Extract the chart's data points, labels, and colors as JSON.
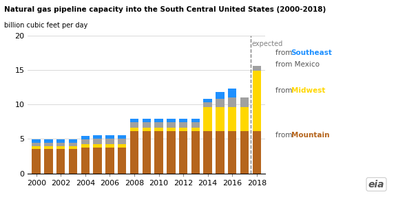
{
  "title": "Natural gas pipeline capacity into the South Central United States (2000-2018)",
  "subtitle": "billion cubic feet per day",
  "years": [
    2000,
    2001,
    2002,
    2003,
    2004,
    2005,
    2006,
    2007,
    2008,
    2009,
    2010,
    2011,
    2012,
    2013,
    2014,
    2015,
    2016,
    2017,
    2018
  ],
  "mountain": [
    3.5,
    3.5,
    3.5,
    3.5,
    3.7,
    3.7,
    3.7,
    3.7,
    6.1,
    6.1,
    6.1,
    6.1,
    6.1,
    6.1,
    6.1,
    6.1,
    6.1,
    6.1,
    6.1
  ],
  "midwest": [
    0.4,
    0.4,
    0.4,
    0.4,
    0.5,
    0.5,
    0.5,
    0.5,
    0.5,
    0.5,
    0.5,
    0.5,
    0.5,
    0.5,
    3.5,
    3.5,
    3.5,
    3.5,
    8.8
  ],
  "mexico": [
    0.5,
    0.5,
    0.5,
    0.5,
    0.7,
    0.8,
    0.8,
    0.8,
    0.8,
    0.8,
    0.8,
    0.8,
    0.8,
    0.8,
    0.7,
    1.2,
    1.4,
    1.4,
    0.7
  ],
  "southeast": [
    0.5,
    0.5,
    0.5,
    0.5,
    0.5,
    0.5,
    0.5,
    0.5,
    0.5,
    0.5,
    0.5,
    0.5,
    0.5,
    0.5,
    0.5,
    1.0,
    1.3,
    0.0,
    0.0
  ],
  "mountain_color": "#b5651d",
  "midwest_color": "#ffd700",
  "mexico_color": "#a0a0a0",
  "southeast_color": "#1e90ff",
  "dashed_line_x": 2017.5,
  "ylim": [
    0,
    20
  ],
  "yticks": [
    0,
    5,
    10,
    15,
    20
  ],
  "expected_label": "expected",
  "bar_width": 0.7,
  "xlim_left": 1999.3,
  "xlim_right": 2018.7
}
